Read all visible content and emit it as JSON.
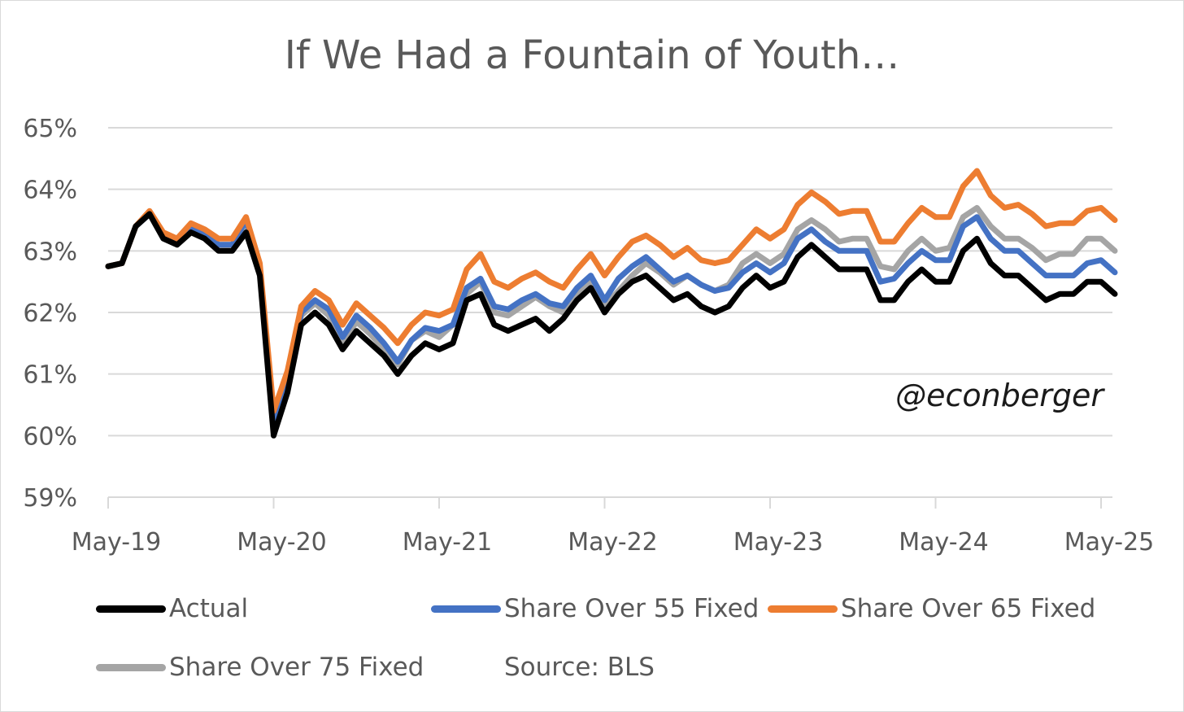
{
  "chart_data": {
    "type": "line",
    "title": "If We Had a Fountain of Youth…",
    "annotation": "@econberger",
    "source": "Source: BLS",
    "ylim": [
      59,
      65
    ],
    "yticks": [
      "59%",
      "60%",
      "61%",
      "62%",
      "63%",
      "64%",
      "65%"
    ],
    "xticks": [
      "May-19",
      "May-20",
      "May-21",
      "May-22",
      "May-23",
      "May-24",
      "May-25"
    ],
    "xlabel": "",
    "ylabel": "",
    "grid": "horizontal",
    "legend_position": "bottom",
    "x": [
      "May-19",
      "Jun-19",
      "Jul-19",
      "Aug-19",
      "Sep-19",
      "Oct-19",
      "Nov-19",
      "Dec-19",
      "Jan-20",
      "Feb-20",
      "Mar-20",
      "Apr-20",
      "May-20",
      "Jun-20",
      "Jul-20",
      "Aug-20",
      "Sep-20",
      "Oct-20",
      "Nov-20",
      "Dec-20",
      "Jan-21",
      "Feb-21",
      "Mar-21",
      "Apr-21",
      "May-21",
      "Jun-21",
      "Jul-21",
      "Aug-21",
      "Sep-21",
      "Oct-21",
      "Nov-21",
      "Dec-21",
      "Jan-22",
      "Feb-22",
      "Mar-22",
      "Apr-22",
      "May-22",
      "Jun-22",
      "Jul-22",
      "Aug-22",
      "Sep-22",
      "Oct-22",
      "Nov-22",
      "Dec-22",
      "Jan-23",
      "Feb-23",
      "Mar-23",
      "Apr-23",
      "May-23",
      "Jun-23",
      "Jul-23",
      "Aug-23",
      "Sep-23",
      "Oct-23",
      "Nov-23",
      "Dec-23",
      "Jan-24",
      "Feb-24",
      "Mar-24",
      "Apr-24",
      "May-24",
      "Jun-24",
      "Jul-24",
      "Aug-24",
      "Sep-24",
      "Oct-24",
      "Nov-24",
      "Dec-24",
      "Jan-25",
      "Feb-25",
      "Mar-25",
      "Apr-25",
      "May-25",
      "Jun-25"
    ],
    "series": [
      {
        "name": "Share Over 75 Fixed",
        "color": "#a5a5a5",
        "values": [
          62.75,
          62.8,
          63.4,
          63.6,
          63.25,
          63.15,
          63.4,
          63.3,
          63.1,
          63.1,
          63.45,
          62.7,
          60.15,
          60.9,
          61.95,
          62.15,
          61.95,
          61.5,
          61.85,
          61.65,
          61.4,
          61.15,
          61.55,
          61.7,
          61.6,
          61.8,
          62.3,
          62.5,
          62.0,
          61.95,
          62.1,
          62.25,
          62.1,
          62.0,
          62.3,
          62.5,
          62.1,
          62.35,
          62.6,
          62.8,
          62.65,
          62.45,
          62.6,
          62.45,
          62.35,
          62.45,
          62.8,
          62.95,
          62.8,
          62.95,
          63.35,
          63.5,
          63.35,
          63.15,
          63.2,
          63.2,
          62.75,
          62.7,
          63.0,
          63.2,
          63.0,
          63.05,
          63.55,
          63.7,
          63.4,
          63.2,
          63.2,
          63.05,
          62.85,
          62.95,
          62.95,
          63.2,
          63.2,
          63.0
        ]
      },
      {
        "name": "Share Over 55 Fixed",
        "color": "#4472c4",
        "values": [
          62.75,
          62.8,
          63.4,
          63.6,
          63.25,
          63.15,
          63.4,
          63.3,
          63.1,
          63.1,
          63.5,
          62.75,
          60.2,
          60.9,
          62.0,
          62.2,
          62.05,
          61.6,
          61.95,
          61.75,
          61.5,
          61.2,
          61.55,
          61.75,
          61.7,
          61.8,
          62.4,
          62.55,
          62.1,
          62.05,
          62.2,
          62.3,
          62.15,
          62.1,
          62.4,
          62.6,
          62.2,
          62.55,
          62.75,
          62.9,
          62.7,
          62.5,
          62.6,
          62.45,
          62.35,
          62.4,
          62.65,
          62.8,
          62.65,
          62.8,
          63.2,
          63.35,
          63.15,
          63.0,
          63.0,
          63.0,
          62.5,
          62.55,
          62.8,
          63.0,
          62.85,
          62.85,
          63.4,
          63.55,
          63.2,
          63.0,
          63.0,
          62.8,
          62.6,
          62.6,
          62.6,
          62.8,
          62.85,
          62.65
        ]
      },
      {
        "name": "Share Over 65 Fixed",
        "color": "#ed7d31",
        "values": [
          62.75,
          62.8,
          63.4,
          63.65,
          63.3,
          63.2,
          63.45,
          63.35,
          63.2,
          63.2,
          63.55,
          62.8,
          60.4,
          61.05,
          62.1,
          62.35,
          62.2,
          61.8,
          62.15,
          61.95,
          61.75,
          61.5,
          61.8,
          62.0,
          61.95,
          62.05,
          62.7,
          62.95,
          62.5,
          62.4,
          62.55,
          62.65,
          62.5,
          62.4,
          62.7,
          62.95,
          62.6,
          62.9,
          63.15,
          63.25,
          63.1,
          62.9,
          63.05,
          62.85,
          62.8,
          62.85,
          63.1,
          63.35,
          63.2,
          63.35,
          63.75,
          63.95,
          63.8,
          63.6,
          63.65,
          63.65,
          63.15,
          63.15,
          63.45,
          63.7,
          63.55,
          63.55,
          64.05,
          64.3,
          63.9,
          63.7,
          63.75,
          63.6,
          63.4,
          63.45,
          63.45,
          63.65,
          63.7,
          63.5
        ]
      },
      {
        "name": "Actual",
        "color": "#000000",
        "values": [
          62.75,
          62.8,
          63.4,
          63.6,
          63.2,
          63.1,
          63.3,
          63.2,
          63.0,
          63.0,
          63.3,
          62.6,
          60.0,
          60.7,
          61.8,
          62.0,
          61.8,
          61.4,
          61.7,
          61.5,
          61.3,
          61.0,
          61.3,
          61.5,
          61.4,
          61.5,
          62.2,
          62.3,
          61.8,
          61.7,
          61.8,
          61.9,
          61.7,
          61.9,
          62.2,
          62.4,
          62.0,
          62.3,
          62.5,
          62.6,
          62.4,
          62.2,
          62.3,
          62.1,
          62.0,
          62.1,
          62.4,
          62.6,
          62.4,
          62.5,
          62.9,
          63.1,
          62.9,
          62.7,
          62.7,
          62.7,
          62.2,
          62.2,
          62.5,
          62.7,
          62.5,
          62.5,
          63.0,
          63.2,
          62.8,
          62.6,
          62.6,
          62.4,
          62.2,
          62.3,
          62.3,
          62.5,
          62.5,
          62.3
        ]
      }
    ],
    "legend": [
      {
        "label": "Actual",
        "color": "#000000"
      },
      {
        "label": "Share Over 55 Fixed",
        "color": "#4472c4"
      },
      {
        "label": "Share Over 65 Fixed",
        "color": "#ed7d31"
      },
      {
        "label": "Share Over 75 Fixed",
        "color": "#a5a5a5"
      }
    ]
  }
}
